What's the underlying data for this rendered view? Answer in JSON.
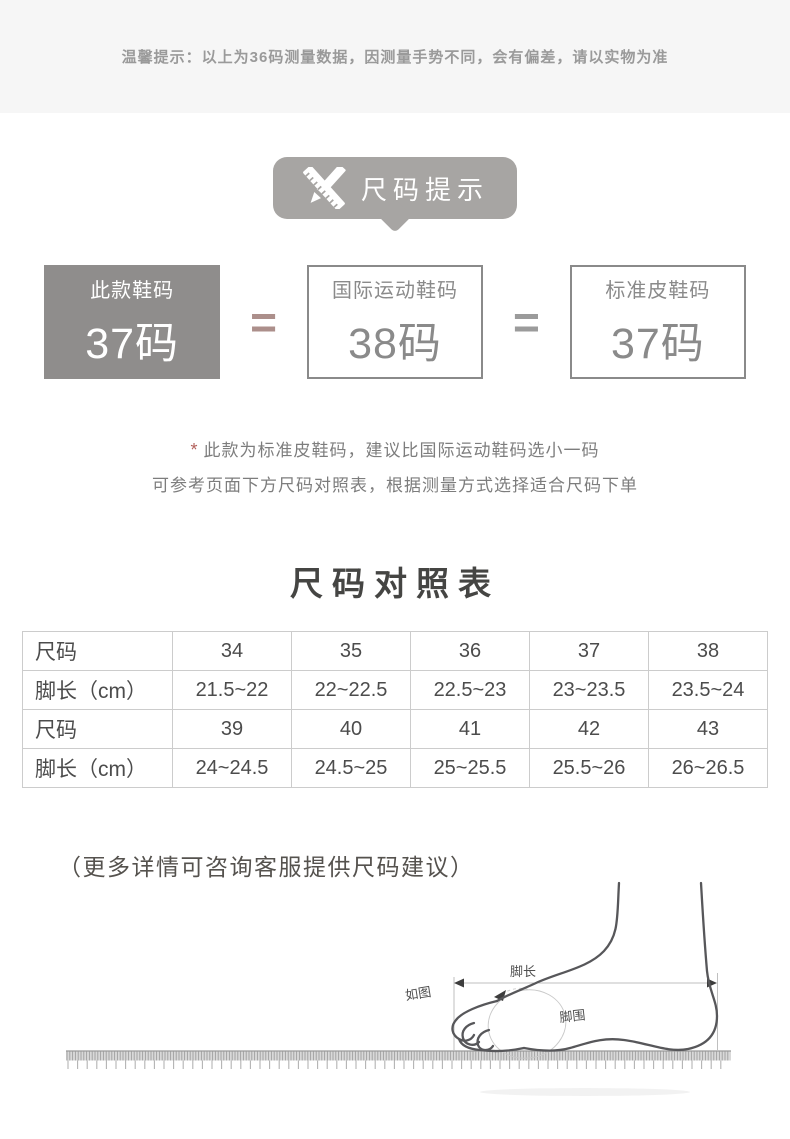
{
  "notice_bar": {
    "text": "温馨提示：以上为36码测量数据，因测量手势不同，会有偏差，请以实物为准"
  },
  "size_tip": {
    "label": "尺码提示",
    "icon": "ruler-pencil-icon",
    "bg_color": "#a7a5a3"
  },
  "conversion": {
    "equals": "=",
    "boxes": [
      {
        "label": "此款鞋码",
        "value": "37码",
        "style": "filled"
      },
      {
        "label": "国际运动鞋码",
        "value": "38码",
        "style": "outlined"
      },
      {
        "label": "标准皮鞋码",
        "value": "37码",
        "style": "outlined"
      }
    ],
    "colors": {
      "filled_box_bg": "#8f8d8c",
      "outlined_box_border": "#8a8a8a",
      "equals_1": "#ac8f8b",
      "equals_2": "#9b9b9b"
    }
  },
  "note": {
    "asterisk": "*",
    "line1": "此款为标准皮鞋码，建议比国际运动鞋码选小一码",
    "line2": "可参考页面下方尺码对照表，根据测量方式选择适合尺码下单",
    "asterisk_color": "#b2605b"
  },
  "size_table": {
    "title": "尺码对照表",
    "rows": [
      {
        "header": "尺码",
        "values": [
          "34",
          "35",
          "36",
          "37",
          "38"
        ]
      },
      {
        "header": "脚长（cm）",
        "values": [
          "21.5~22",
          "22~22.5",
          "22.5~23",
          "23~23.5",
          "23.5~24"
        ]
      },
      {
        "header": "尺码",
        "values": [
          "39",
          "40",
          "41",
          "42",
          "43"
        ]
      },
      {
        "header": "脚长（cm）",
        "values": [
          "24~24.5",
          "24.5~25",
          "25~25.5",
          "25.5~26",
          "26~26.5"
        ]
      }
    ]
  },
  "advice": {
    "text": "（更多详情可咨询客服提供尺码建议）"
  },
  "foot_diagram": {
    "labels": {
      "foot_length": "脚长",
      "as_shown": "如图",
      "foot_girth": "脚围"
    }
  }
}
